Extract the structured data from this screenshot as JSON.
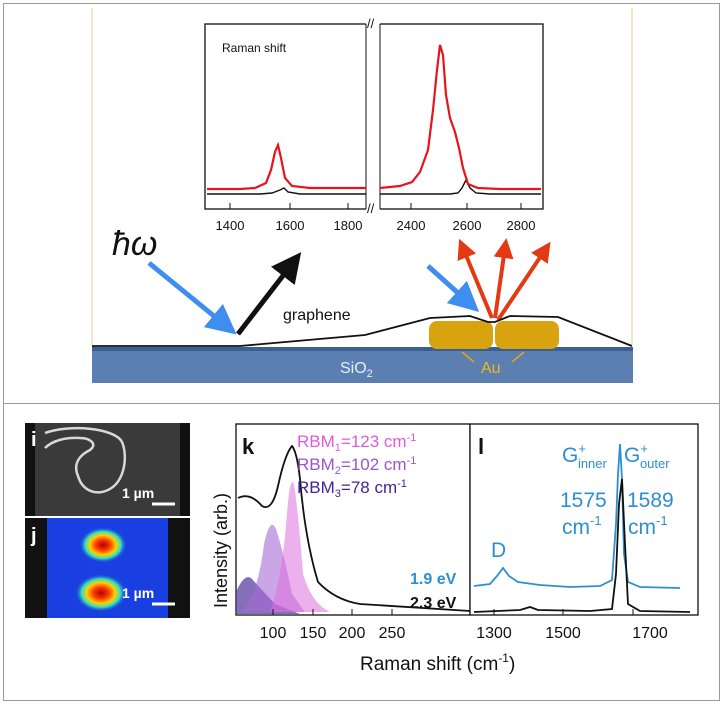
{
  "top": {
    "inset_label": "Raman shift",
    "break_mark": "//",
    "ticks_left": [
      "1400",
      "1600",
      "1800"
    ],
    "ticks_right": [
      "2400",
      "2600",
      "2800"
    ],
    "photon_label": "ħω",
    "graphene_label": "graphene",
    "substrate_label": "SiO",
    "substrate_sub": "2",
    "au_label": "Au",
    "colors": {
      "spectrum_on": "#e8141b",
      "spectrum_off": "#111111",
      "incident": "#3d8ef0",
      "scattered": "#e33a14",
      "gold": "#d9a20f",
      "substrate": "#5a7fb0"
    }
  },
  "bottom": {
    "panel_i": {
      "label": "i",
      "scale": "1 µm"
    },
    "panel_j": {
      "label": "j",
      "scale": "1 µm"
    },
    "panel_k": {
      "label": "k",
      "rbm1": "RBM",
      "rbm1_sub": "1",
      "rbm1_val": "=123 cm",
      "rbm1_sup": "-1",
      "rbm2": "RBM",
      "rbm2_sub": "2",
      "rbm2_val": "=102 cm",
      "rbm2_sup": "-1",
      "rbm3": "RBM",
      "rbm3_sub": "3",
      "rbm3_val": "=78 cm",
      "rbm3_sup": "-1",
      "ticks": [
        "100",
        "150",
        "200",
        "250"
      ]
    },
    "panel_l": {
      "label": "l",
      "d_label": "D",
      "g_inner": "G",
      "g_inner_sup": "+",
      "g_inner_sub": "inner",
      "g_outer": "G",
      "g_outer_sup": "+",
      "g_outer_sub": "outer",
      "inner_val": "1575",
      "outer_val": "1589",
      "unit": "cm",
      "unit_sup": "-1",
      "ev_blue": "1.9 eV",
      "ev_black": "2.3 eV",
      "ticks": [
        "1300",
        "1500",
        "1700"
      ]
    },
    "ylabel": "Intensity (arb.)",
    "xlabel": "Raman shift (cm",
    "xlabel_sup": "-1",
    "xlabel_end": ")"
  }
}
